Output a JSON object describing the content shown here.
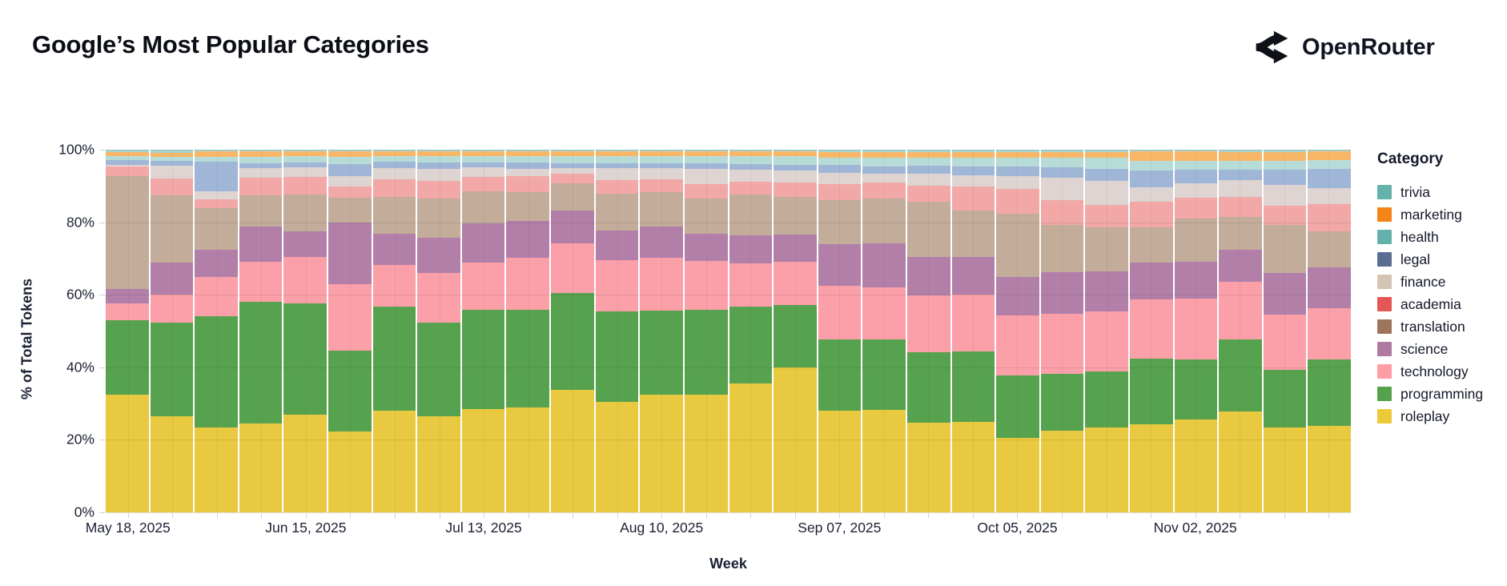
{
  "header": {
    "title": "Google’s Most Popular Categories",
    "brand": "OpenRouter"
  },
  "chart": {
    "y_axis": {
      "title": "% of Total Tokens",
      "ticks": [
        {
          "label": "0%",
          "value": 0
        },
        {
          "label": "20%",
          "value": 20
        },
        {
          "label": "40%",
          "value": 40
        },
        {
          "label": "60%",
          "value": 60
        },
        {
          "label": "80%",
          "value": 80
        },
        {
          "label": "100%",
          "value": 100
        }
      ]
    },
    "x_axis": {
      "title": "Week",
      "labels": [
        {
          "text": "May 18, 2025",
          "week_index": 0
        },
        {
          "text": "Jun 15, 2025",
          "week_index": 4
        },
        {
          "text": "Jul 13, 2025",
          "week_index": 8
        },
        {
          "text": "Aug 10, 2025",
          "week_index": 12
        },
        {
          "text": "Sep 07, 2025",
          "week_index": 16
        },
        {
          "text": "Oct 05, 2025",
          "week_index": 20
        },
        {
          "text": "Nov 02, 2025",
          "week_index": 24
        }
      ]
    },
    "legend": {
      "title": "Category"
    }
  },
  "chart_data": {
    "type": "bar",
    "stacked": "normalized-100-percent",
    "title": "Google’s Most Popular Categories",
    "xlabel": "Week",
    "ylabel": "% of Total Tokens",
    "ylim": [
      0,
      100
    ],
    "grid": true,
    "legend_position": "right",
    "stack_order_note": "series listed top-of-stack first; roleplay is at the bottom of each bar; values are percent of total tokens per week",
    "x": [
      "May 18, 2025",
      "May 25, 2025",
      "Jun 01, 2025",
      "Jun 08, 2025",
      "Jun 15, 2025",
      "Jun 22, 2025",
      "Jun 29, 2025",
      "Jul 06, 2025",
      "Jul 13, 2025",
      "Jul 20, 2025",
      "Jul 27, 2025",
      "Aug 03, 2025",
      "Aug 10, 2025",
      "Aug 17, 2025",
      "Aug 24, 2025",
      "Aug 31, 2025",
      "Sep 07, 2025",
      "Sep 14, 2025",
      "Sep 21, 2025",
      "Sep 28, 2025",
      "Oct 05, 2025",
      "Oct 12, 2025",
      "Oct 19, 2025",
      "Oct 26, 2025",
      "Nov 02, 2025",
      "Nov 09, 2025",
      "Nov 16, 2025",
      "Nov 23, 2025"
    ],
    "series": [
      {
        "name": "trivia",
        "legend_color": "#64b2ab",
        "bar_color": "#a6d4d0",
        "pattern": false,
        "values": [
          0.7,
          0.8,
          0.4,
          0.5,
          0.4,
          0.4,
          0.4,
          0.4,
          0.4,
          0.5,
          0.5,
          0.5,
          0.5,
          0.5,
          0.5,
          0.5,
          0.7,
          0.7,
          0.7,
          0.7,
          0.7,
          0.7,
          0.7,
          0.5,
          0.5,
          0.7,
          0.7,
          0.5
        ]
      },
      {
        "name": "marketing",
        "legend_color": "#f58518",
        "bar_color": "#f8b768",
        "pattern": false,
        "values": [
          1.1,
          1.2,
          1.5,
          1.4,
          1.4,
          1.5,
          1.4,
          1.4,
          1.4,
          1.3,
          1.3,
          1.3,
          1.3,
          1.3,
          1.3,
          1.3,
          1.5,
          1.5,
          1.5,
          1.5,
          1.6,
          1.6,
          1.6,
          2.6,
          2.6,
          2.4,
          2.4,
          2.4
        ]
      },
      {
        "name": "health",
        "legend_color": "#64b2ab",
        "bar_color": "#b7dcd8",
        "pattern": false,
        "values": [
          1.0,
          1.0,
          1.5,
          1.8,
          1.8,
          2.1,
          1.6,
          1.8,
          1.8,
          1.8,
          2.0,
          1.9,
          1.9,
          2.0,
          2.1,
          2.4,
          2.1,
          2.4,
          2.2,
          2.4,
          2.4,
          2.6,
          2.9,
          2.7,
          2.4,
          2.4,
          2.5,
          2.4
        ]
      },
      {
        "name": "legal",
        "legend_color": "#5a6d92",
        "bar_color": "#a0b6d6",
        "pattern": true,
        "values": [
          1.5,
          1.5,
          8.1,
          1.4,
          1.3,
          3.2,
          1.6,
          1.8,
          1.3,
          1.6,
          1.2,
          1.3,
          1.3,
          1.6,
          1.6,
          1.6,
          2.1,
          2.1,
          2.2,
          2.4,
          2.6,
          2.9,
          3.4,
          4.6,
          3.8,
          2.9,
          4.1,
          5.4
        ]
      },
      {
        "name": "finance",
        "legend_color": "#d3c4b4",
        "bar_color": "#ded4d1",
        "pattern": true,
        "values": [
          0.4,
          3.4,
          2.3,
          2.6,
          2.7,
          2.9,
          3.1,
          3.3,
          2.7,
          2.2,
          1.6,
          3.3,
          3.1,
          4.0,
          3.4,
          3.3,
          3.2,
          2.4,
          3.3,
          3.2,
          3.5,
          6.0,
          6.6,
          4.0,
          3.9,
          4.6,
          5.7,
          4.3
        ]
      },
      {
        "name": "academia",
        "legend_color": "#e45756",
        "bar_color": "#f1a8a6",
        "pattern": false,
        "values": [
          2.6,
          4.6,
          2.3,
          4.9,
          4.8,
          3.2,
          4.9,
          4.8,
          4.0,
          4.3,
          2.8,
          3.9,
          3.7,
          4.0,
          3.4,
          3.9,
          4.3,
          4.3,
          4.4,
          6.6,
          6.9,
          7.0,
          6.2,
          7.1,
          5.7,
          5.6,
          5.4,
          7.5
        ]
      },
      {
        "name": "translation",
        "legend_color": "#9d755d",
        "bar_color": "#c3ac9a",
        "pattern": false,
        "values": [
          31.2,
          18.7,
          11.6,
          8.6,
          10.2,
          6.8,
          10.3,
          10.7,
          8.8,
          7.9,
          7.5,
          10.1,
          9.3,
          9.8,
          11.3,
          10.4,
          12.1,
          12.5,
          15.2,
          12.9,
          17.4,
          13.0,
          12.2,
          9.6,
          12.0,
          9.1,
          13.2,
          10.0
        ]
      },
      {
        "name": "science",
        "legend_color": "#af7aa1",
        "bar_color": "#b27fa9",
        "pattern": false,
        "values": [
          4.0,
          8.8,
          7.5,
          9.7,
          6.9,
          17.1,
          8.4,
          9.9,
          10.7,
          10.3,
          9.0,
          8.1,
          8.8,
          7.4,
          7.8,
          7.5,
          11.6,
          12.0,
          10.7,
          10.3,
          10.6,
          11.5,
          11.0,
          10.3,
          10.1,
          8.8,
          11.6,
          11.2
        ]
      },
      {
        "name": "technology",
        "legend_color": "#ff9da7",
        "bar_color": "#fb9fa8",
        "pattern": false,
        "values": [
          4.5,
          7.7,
          10.7,
          11.0,
          13.0,
          18.2,
          11.6,
          13.6,
          13.0,
          14.3,
          13.7,
          14.2,
          14.5,
          13.5,
          11.9,
          12.0,
          14.7,
          14.5,
          15.5,
          15.7,
          16.6,
          16.5,
          16.5,
          16.2,
          16.9,
          15.9,
          15.2,
          14.1
        ]
      },
      {
        "name": "programming",
        "legend_color": "#54a24b",
        "bar_color": "#57a24e",
        "pattern": false,
        "values": [
          20.5,
          25.8,
          30.8,
          33.7,
          30.5,
          22.3,
          28.7,
          25.8,
          27.4,
          26.9,
          26.8,
          24.8,
          23.2,
          23.4,
          21.2,
          17.1,
          19.6,
          19.3,
          19.6,
          19.4,
          17.2,
          15.7,
          15.5,
          18.2,
          16.6,
          19.9,
          15.9,
          18.4
        ]
      },
      {
        "name": "roleplay",
        "legend_color": "#eeca3b",
        "bar_color": "#e9c93f",
        "pattern": false,
        "values": [
          32.5,
          26.5,
          23.3,
          24.4,
          27.0,
          22.4,
          28.0,
          26.5,
          28.5,
          28.9,
          33.7,
          30.5,
          32.4,
          32.4,
          35.5,
          39.9,
          28.1,
          28.3,
          24.6,
          24.9,
          20.5,
          22.4,
          23.4,
          24.3,
          25.5,
          27.7,
          23.3,
          23.8
        ]
      }
    ]
  }
}
